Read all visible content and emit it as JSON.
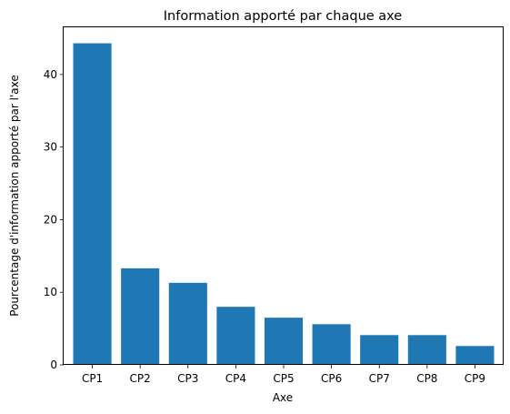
{
  "chart_data": {
    "type": "bar",
    "title": "Information apporté par chaque axe",
    "xlabel": "Axe",
    "ylabel": "Pourcentage d'information apporté par l'axe",
    "categories": [
      "CP1",
      "CP2",
      "CP3",
      "CP4",
      "CP5",
      "CP6",
      "CP7",
      "CP8",
      "CP9"
    ],
    "values": [
      44.3,
      13.3,
      11.3,
      8.0,
      6.5,
      5.6,
      4.1,
      4.1,
      2.6
    ],
    "ylim": [
      0,
      46.5
    ],
    "yticks": [
      0,
      10,
      20,
      30,
      40
    ],
    "grid": false,
    "bar_color": "#1f77b4"
  }
}
